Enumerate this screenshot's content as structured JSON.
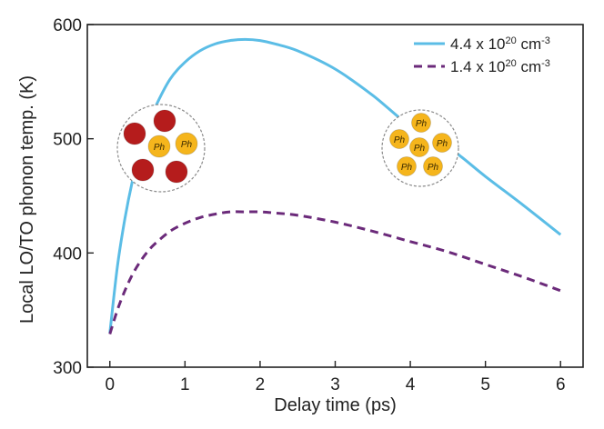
{
  "chart_data": {
    "type": "line",
    "xlabel": "Delay time (ps)",
    "ylabel": "Local LO/TO phonon temp. (K)",
    "xlim": [
      -0.3,
      6.3
    ],
    "ylim": [
      300,
      600
    ],
    "xticks": [
      0,
      1,
      2,
      3,
      4,
      5,
      6
    ],
    "yticks": [
      300,
      400,
      500,
      600
    ],
    "grid": false,
    "legend_position": "top-right",
    "series": [
      {
        "name": "4.4 x 10^20 cm^-3",
        "legend": {
          "base": "4.4 x 10",
          "exp": "20",
          "unit": " cm",
          "unit_exp": "-3"
        },
        "color": "#5bbde6",
        "style": "solid",
        "x": [
          0,
          0.1,
          0.2,
          0.3,
          0.4,
          0.5,
          0.6,
          0.8,
          1.0,
          1.2,
          1.4,
          1.6,
          1.8,
          2.0,
          2.2,
          2.5,
          3.0,
          3.5,
          4.0,
          4.5,
          5.0,
          5.5,
          6.0
        ],
        "y": [
          330,
          388,
          430,
          463,
          489,
          510,
          527,
          552,
          567,
          577,
          583,
          586,
          587,
          586,
          583,
          577,
          561,
          538,
          511,
          493,
          467,
          442,
          416
        ]
      },
      {
        "name": "1.4 x 10^20 cm^-3",
        "legend": {
          "base": "1.4 x 10",
          "exp": "20",
          "unit": " cm",
          "unit_exp": "-3"
        },
        "color": "#6b2a7a",
        "style": "dashed",
        "x": [
          0,
          0.1,
          0.2,
          0.3,
          0.4,
          0.5,
          0.6,
          0.8,
          1.0,
          1.2,
          1.4,
          1.6,
          1.8,
          2.0,
          2.2,
          2.5,
          3.0,
          3.5,
          4.0,
          4.5,
          5.0,
          5.5,
          6.0
        ],
        "y": [
          329,
          350,
          367,
          381,
          392,
          401,
          408,
          419,
          426,
          431,
          434,
          436,
          436,
          436,
          435,
          433,
          427,
          419,
          410,
          401,
          390,
          379,
          367
        ]
      }
    ],
    "annotations": [
      {
        "kind": "particle-cluster",
        "near": "left-rising-branch",
        "particles": [
          {
            "label": "",
            "color": "#b51c1c"
          },
          {
            "label": "",
            "color": "#b51c1c"
          },
          {
            "label": "",
            "color": "#b51c1c"
          },
          {
            "label": "",
            "color": "#b51c1c"
          },
          {
            "label": "Ph",
            "color": "#f5b51c"
          },
          {
            "label": "Ph",
            "color": "#f5b51c"
          }
        ]
      },
      {
        "kind": "particle-cluster",
        "near": "right-descending-branch",
        "particles": [
          {
            "label": "Ph",
            "color": "#f5b51c"
          },
          {
            "label": "Ph",
            "color": "#f5b51c"
          },
          {
            "label": "Ph",
            "color": "#f5b51c"
          },
          {
            "label": "Ph",
            "color": "#f5b51c"
          },
          {
            "label": "Ph",
            "color": "#f5b51c"
          },
          {
            "label": "Ph",
            "color": "#f5b51c"
          }
        ]
      }
    ]
  }
}
